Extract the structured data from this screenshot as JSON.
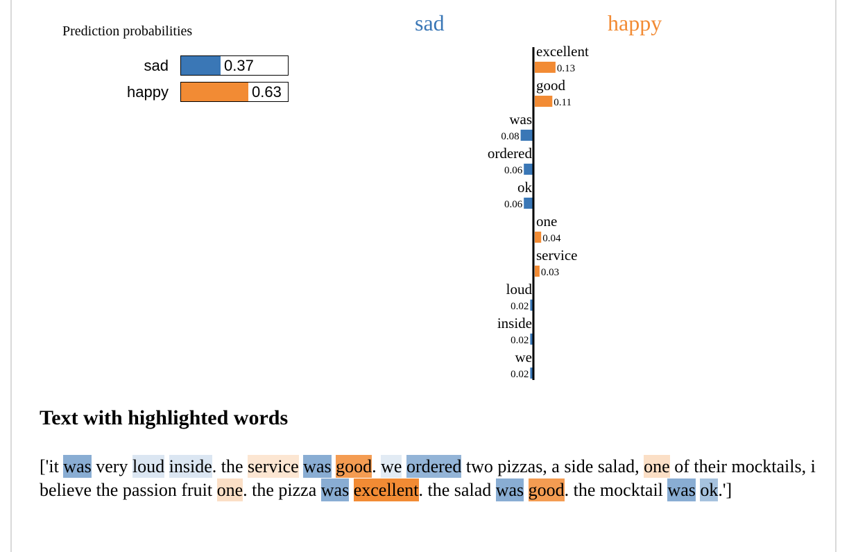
{
  "colors": {
    "sad": "#3a77b6",
    "happy": "#f28b34"
  },
  "prediction": {
    "title": "Prediction probabilities",
    "items": [
      {
        "label": "sad",
        "value": 0.37,
        "value_text": "0.37"
      },
      {
        "label": "happy",
        "value": 0.63,
        "value_text": "0.63"
      }
    ]
  },
  "class_headers": {
    "left": "sad",
    "right": "happy"
  },
  "chart_data": {
    "type": "bar",
    "orientation": "horizontal-diverging",
    "categories": [
      "excellent",
      "good",
      "was",
      "ordered",
      "ok",
      "one",
      "service",
      "loud",
      "inside",
      "we"
    ],
    "values": [
      0.13,
      0.11,
      -0.08,
      -0.06,
      -0.06,
      0.04,
      0.03,
      -0.02,
      -0.02,
      -0.02
    ],
    "value_labels": [
      "0.13",
      "0.11",
      "0.08",
      "0.06",
      "0.06",
      "0.04",
      "0.03",
      "0.02",
      "0.02",
      "0.02"
    ],
    "legend": [
      "sad",
      "happy"
    ]
  },
  "highlight": {
    "title": "Text with highlighted words",
    "segments": [
      {
        "t": "['it "
      },
      {
        "t": "was",
        "c": "sad",
        "o": 0.6
      },
      {
        "t": " very "
      },
      {
        "t": "loud",
        "c": "sad",
        "o": 0.18
      },
      {
        "t": " "
      },
      {
        "t": "inside",
        "c": "sad",
        "o": 0.18
      },
      {
        "t": ". the "
      },
      {
        "t": "service",
        "c": "happy",
        "o": 0.22
      },
      {
        "t": " "
      },
      {
        "t": "was",
        "c": "sad",
        "o": 0.6
      },
      {
        "t": " "
      },
      {
        "t": "good",
        "c": "happy",
        "o": 0.85
      },
      {
        "t": ". "
      },
      {
        "t": "we",
        "c": "sad",
        "o": 0.15
      },
      {
        "t": " "
      },
      {
        "t": "ordered",
        "c": "sad",
        "o": 0.55
      },
      {
        "t": " two pizzas, a side salad, "
      },
      {
        "t": "one",
        "c": "happy",
        "o": 0.28
      },
      {
        "t": " of their mocktails, i believe the passion fruit "
      },
      {
        "t": "one",
        "c": "happy",
        "o": 0.28
      },
      {
        "t": ". the pizza "
      },
      {
        "t": "was",
        "c": "sad",
        "o": 0.6
      },
      {
        "t": " "
      },
      {
        "t": "excellent",
        "c": "happy",
        "o": 1.0
      },
      {
        "t": ". the salad "
      },
      {
        "t": "was",
        "c": "sad",
        "o": 0.6
      },
      {
        "t": " "
      },
      {
        "t": "good",
        "c": "happy",
        "o": 0.85
      },
      {
        "t": ". the mocktail "
      },
      {
        "t": "was",
        "c": "sad",
        "o": 0.6
      },
      {
        "t": " "
      },
      {
        "t": "ok",
        "c": "sad",
        "o": 0.45
      },
      {
        "t": ".']"
      }
    ]
  }
}
